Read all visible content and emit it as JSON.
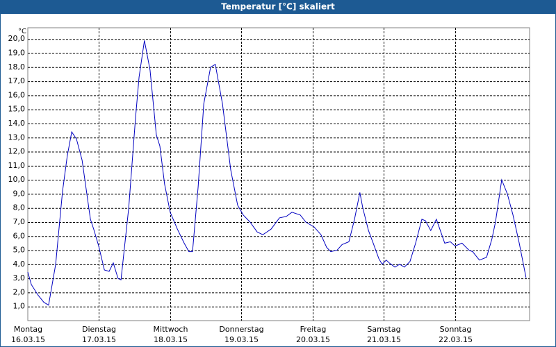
{
  "chart_data": {
    "type": "line",
    "title": "Temperatur [°C] skaliert",
    "unit": "°C",
    "xlim": [
      0,
      169.1
    ],
    "ylim": [
      0,
      20.8
    ],
    "xticks": [
      {
        "value": 0,
        "label": "Montag"
      },
      {
        "value": 24,
        "label": "Dienstag"
      },
      {
        "value": 48,
        "label": "Mittwoch"
      },
      {
        "value": 72,
        "label": "Donnerstag"
      },
      {
        "value": 96,
        "label": "Freitag"
      },
      {
        "value": 120,
        "label": "Samstag"
      },
      {
        "value": 144,
        "label": "Sonntag"
      }
    ],
    "xtick_dates": [
      "16.03.15",
      "17.03.15",
      "18.03.15",
      "19.03.15",
      "20.03.15",
      "21.03.15",
      "22.03.15"
    ],
    "yticks": [
      {
        "value": 1,
        "label": "1,0"
      },
      {
        "value": 2,
        "label": "2,0"
      },
      {
        "value": 3,
        "label": "3,0"
      },
      {
        "value": 4,
        "label": "4,0"
      },
      {
        "value": 5,
        "label": "5,0"
      },
      {
        "value": 6,
        "label": "6,0"
      },
      {
        "value": 7,
        "label": "7,0"
      },
      {
        "value": 8,
        "label": "8,0"
      },
      {
        "value": 9,
        "label": "9,0"
      },
      {
        "value": 10,
        "label": "10,0"
      },
      {
        "value": 11,
        "label": "11,0"
      },
      {
        "value": 12,
        "label": "12,0"
      },
      {
        "value": 13,
        "label": "13,0"
      },
      {
        "value": 14,
        "label": "14,0"
      },
      {
        "value": 15,
        "label": "15,0"
      },
      {
        "value": 16,
        "label": "16,0"
      },
      {
        "value": 17,
        "label": "17,0"
      },
      {
        "value": 18,
        "label": "18,0"
      },
      {
        "value": 19,
        "label": "19,0"
      },
      {
        "value": 20,
        "label": "20,0"
      }
    ],
    "grid": true,
    "series": [
      {
        "color": "#0000c0",
        "x": [
          0,
          1.2,
          3.5,
          5.4,
          7.0,
          9.4,
          11.7,
          13.3,
          14.8,
          16.4,
          18.3,
          21.1,
          22.2,
          23.9,
          25.8,
          27.4,
          28.8,
          30.4,
          31.4,
          34.0,
          36.3,
          37.5,
          39.3,
          41.2,
          43.3,
          44.5,
          46.1,
          48.0,
          50.4,
          52.7,
          54.3,
          55.5,
          57.4,
          59.3,
          61.6,
          63.2,
          65.6,
          68.4,
          70.7,
          72.6,
          74.9,
          77.3,
          79.2,
          82.0,
          84.8,
          87.1,
          89.0,
          91.8,
          93.7,
          96.5,
          98.8,
          100.7,
          102.1,
          104.2,
          105.9,
          108.2,
          110.1,
          111.9,
          112.9,
          114.8,
          116.4,
          118.3,
          119.4,
          120.8,
          121.8,
          123.7,
          125.3,
          126.9,
          128.8,
          130.7,
          132.8,
          134.0,
          135.8,
          137.7,
          140.5,
          142.4,
          144.0,
          146.3,
          148.7,
          149.9,
          152.2,
          154.6,
          156.4,
          157.6,
          159.7,
          161.6,
          163.5,
          165.6,
          167.9
        ],
        "values": [
          3.45,
          2.56,
          1.8,
          1.3,
          1.1,
          4.0,
          9.2,
          11.7,
          13.4,
          12.9,
          11.4,
          7.2,
          6.5,
          5.3,
          3.6,
          3.5,
          4.1,
          3.0,
          2.9,
          8.0,
          14.4,
          17.3,
          19.9,
          17.8,
          13.2,
          12.4,
          9.7,
          7.7,
          6.5,
          5.5,
          4.9,
          4.9,
          9.5,
          15.4,
          18.0,
          18.2,
          15.4,
          10.7,
          8.2,
          7.5,
          7.0,
          6.3,
          6.1,
          6.5,
          7.3,
          7.4,
          7.7,
          7.5,
          7.0,
          6.65,
          6.1,
          5.2,
          4.9,
          5.0,
          5.4,
          5.6,
          7.2,
          9.1,
          8.0,
          6.4,
          5.5,
          4.4,
          4.0,
          4.3,
          4.1,
          3.8,
          4.0,
          3.8,
          4.2,
          5.5,
          7.2,
          7.1,
          6.4,
          7.2,
          5.5,
          5.6,
          5.3,
          5.5,
          5.0,
          4.9,
          4.3,
          4.5,
          5.8,
          7.0,
          10.0,
          9.0,
          7.5,
          5.5,
          3.05
        ]
      }
    ]
  }
}
